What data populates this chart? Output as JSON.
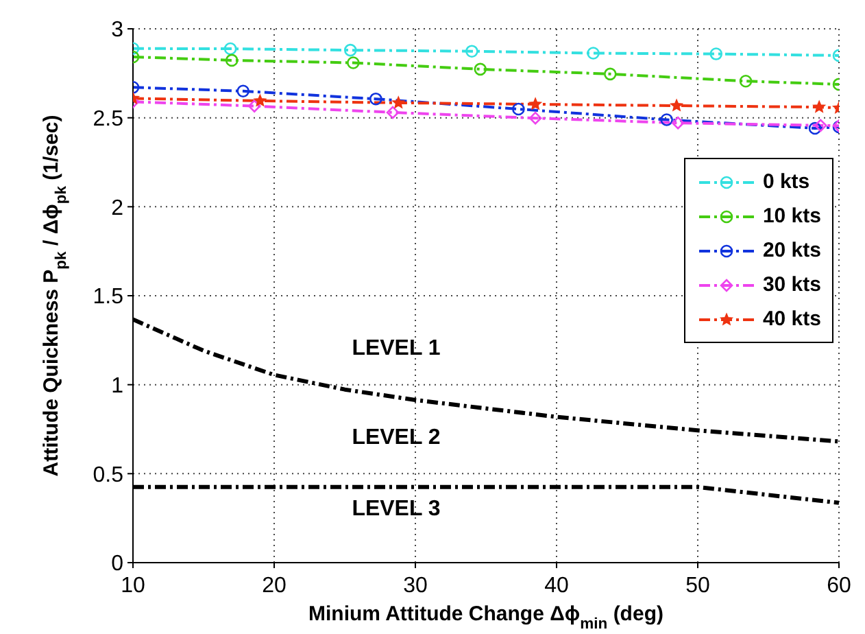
{
  "chart_data": {
    "type": "line",
    "xlabel": "Minium Attitude Change Δϕ$_{min}$ (deg)",
    "ylabel": "Attitude Quickness P$_{pk}$ / Δϕ$_{pk}$ (1/sec)",
    "xlim": [
      10,
      60
    ],
    "xticks": [
      10,
      20,
      30,
      40,
      50,
      60
    ],
    "ylim": [
      0,
      3
    ],
    "yticks": [
      0,
      0.5,
      1,
      1.5,
      2,
      2.5,
      3
    ],
    "grid": true,
    "legend": "right",
    "line_style": "dashed",
    "series": [
      {
        "name": "0 kts",
        "color": "#33e0e0",
        "marker": "circle",
        "x": [
          10,
          16.9,
          25.4,
          34.0,
          42.6,
          51.3,
          60
        ],
        "values": [
          2.889,
          2.888,
          2.88,
          2.874,
          2.863,
          2.859,
          2.85
        ]
      },
      {
        "name": "10 kts",
        "color": "#44cc11",
        "marker": "circle",
        "x": [
          10,
          17.0,
          25.6,
          34.6,
          43.8,
          53.4,
          60
        ],
        "values": [
          2.842,
          2.823,
          2.809,
          2.773,
          2.746,
          2.706,
          2.688
        ]
      },
      {
        "name": "20 kts",
        "color": "#1133dd",
        "marker": "circle",
        "x": [
          10,
          17.8,
          27.2,
          37.3,
          47.8,
          58.3,
          60
        ],
        "values": [
          2.671,
          2.65,
          2.606,
          2.549,
          2.489,
          2.441,
          2.449
        ]
      },
      {
        "name": "30 kts",
        "color": "#ee44ee",
        "marker": "diamond",
        "x": [
          10,
          18.6,
          28.4,
          38.5,
          48.6,
          58.7,
          60
        ],
        "values": [
          2.59,
          2.566,
          2.53,
          2.498,
          2.471,
          2.457,
          2.455
        ]
      },
      {
        "name": "40 kts",
        "color": "#ee3311",
        "marker": "star",
        "x": [
          10,
          19.0,
          28.8,
          38.5,
          48.5,
          58.6,
          60
        ],
        "values": [
          2.609,
          2.595,
          2.584,
          2.576,
          2.568,
          2.56,
          2.555
        ]
      },
      {
        "color": "#000000",
        "marker": "none",
        "x": [
          10,
          15,
          20,
          25,
          30,
          40,
          50,
          60
        ],
        "values": [
          1.367,
          1.191,
          1.055,
          0.973,
          0.914,
          0.819,
          0.743,
          0.681
        ]
      },
      {
        "color": "#000000",
        "marker": "none",
        "x": [
          10,
          50,
          60
        ],
        "values": [
          0.425,
          0.425,
          0.336
        ]
      }
    ],
    "annotations": [
      "LEVEL 1",
      "LEVEL 2",
      "LEVEL 3"
    ]
  }
}
